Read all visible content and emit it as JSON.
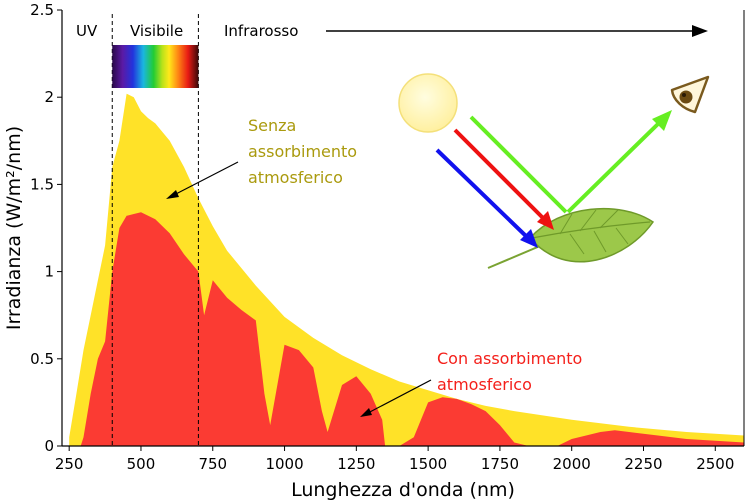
{
  "chart_data": {
    "type": "area",
    "xlabel": "Lunghezza d'onda (nm)",
    "ylabel": "Irradianza (W/m²/nm)",
    "xlim": [
      225,
      2600
    ],
    "ylim": [
      0,
      2.5
    ],
    "x_ticks": [
      "250",
      "500",
      "750",
      "1000",
      "1250",
      "1500",
      "1750",
      "2000",
      "2250",
      "2500"
    ],
    "y_ticks": [
      "0",
      "0.5",
      "1",
      "1.5",
      "2",
      "2.5"
    ],
    "bands": [
      {
        "label": "UV",
        "range": [
          225,
          400
        ]
      },
      {
        "label": "Visibile",
        "range": [
          400,
          700
        ]
      },
      {
        "label": "Infrarosso",
        "range": [
          700,
          2600
        ]
      }
    ],
    "series": [
      {
        "name": "Senza assorbimento atmosferico",
        "color": "#ffe228",
        "x": [
          250,
          275,
          300,
          325,
          350,
          375,
          400,
          425,
          450,
          475,
          500,
          525,
          550,
          600,
          650,
          700,
          750,
          800,
          900,
          1000,
          1100,
          1200,
          1300,
          1400,
          1500,
          1600,
          1700,
          1800,
          2000,
          2200,
          2400,
          2600
        ],
        "y": [
          0.05,
          0.3,
          0.55,
          0.75,
          0.95,
          1.15,
          1.6,
          1.75,
          2.02,
          2.0,
          1.92,
          1.88,
          1.85,
          1.75,
          1.6,
          1.42,
          1.26,
          1.12,
          0.92,
          0.74,
          0.62,
          0.52,
          0.44,
          0.37,
          0.32,
          0.27,
          0.23,
          0.2,
          0.15,
          0.11,
          0.08,
          0.06
        ]
      },
      {
        "name": "Con assorbimento atmosferico",
        "color": "#fb3b33",
        "x": [
          290,
          300,
          325,
          350,
          375,
          400,
          425,
          450,
          475,
          500,
          550,
          600,
          650,
          700,
          720,
          750,
          800,
          850,
          900,
          930,
          950,
          1000,
          1050,
          1100,
          1130,
          1150,
          1200,
          1250,
          1300,
          1340,
          1350,
          1400,
          1450,
          1500,
          1550,
          1600,
          1650,
          1700,
          1750,
          1800,
          1850,
          1900,
          1950,
          2000,
          2050,
          2100,
          2150,
          2200,
          2300,
          2400,
          2500,
          2600
        ],
        "y": [
          0.0,
          0.05,
          0.3,
          0.5,
          0.6,
          1.0,
          1.25,
          1.32,
          1.33,
          1.34,
          1.3,
          1.22,
          1.1,
          1.0,
          0.75,
          0.95,
          0.85,
          0.78,
          0.72,
          0.3,
          0.12,
          0.58,
          0.55,
          0.45,
          0.2,
          0.08,
          0.35,
          0.4,
          0.3,
          0.15,
          0.0,
          0.0,
          0.05,
          0.25,
          0.28,
          0.27,
          0.24,
          0.2,
          0.12,
          0.02,
          0.0,
          0.0,
          0.0,
          0.04,
          0.06,
          0.08,
          0.09,
          0.08,
          0.06,
          0.04,
          0.03,
          0.02
        ]
      }
    ],
    "annotations": {
      "senza_line1": "Senza",
      "senza_line2": "assorbimento",
      "senza_line3": "atmosferico",
      "con_line1": "Con assorbimento",
      "con_line2": "atmosferico"
    }
  },
  "colors": {
    "senza_text": "#aa9a0e",
    "con_text": "#f4201b",
    "green": "#66ee22",
    "red": "#ee1111",
    "blue": "#1111ee",
    "leaf": "#9cc84a",
    "sun": "#fff3a0"
  },
  "icons": [
    "sun-icon",
    "eye-icon",
    "leaf-icon"
  ]
}
